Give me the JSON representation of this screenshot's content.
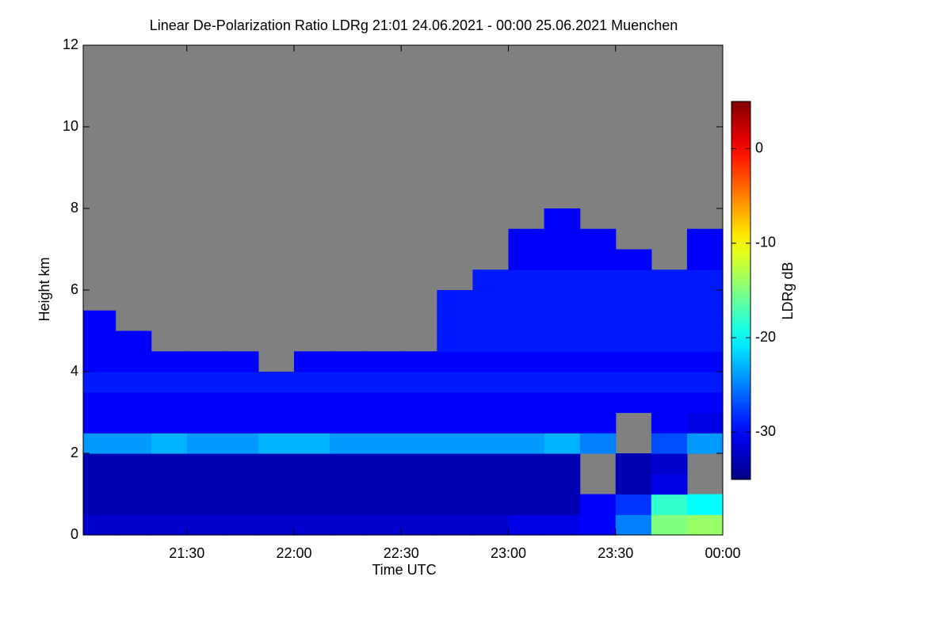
{
  "chart_data": {
    "type": "heatmap",
    "title": "Linear De-Polarization Ratio LDRg   21:01 24.06.2021 - 00:00 25.06.2021 Muenchen",
    "x_label": "Time UTC",
    "y_label": "Height km",
    "colorbar_label": "LDRg dB",
    "xlim": [
      21.0167,
      24.0
    ],
    "xticks": [
      {
        "value": 21.5,
        "label": "21:30"
      },
      {
        "value": 22.0,
        "label": "22:00"
      },
      {
        "value": 22.5,
        "label": "22:30"
      },
      {
        "value": 23.0,
        "label": "23:00"
      },
      {
        "value": 23.5,
        "label": "23:30"
      },
      {
        "value": 24.0,
        "label": "00:00"
      }
    ],
    "ylim": [
      0,
      12
    ],
    "yticks": [
      0,
      2,
      4,
      6,
      8,
      10,
      12
    ],
    "clim": [
      -35,
      5
    ],
    "cticks": [
      0,
      -10,
      -20,
      -30
    ],
    "colormap": "jet",
    "missing_color": "#808080",
    "xbins": [
      21.0167,
      21.1667,
      21.3333,
      21.5,
      21.6667,
      21.8333,
      22.0,
      22.1667,
      22.3333,
      22.5,
      22.6667,
      22.8333,
      23.0,
      23.1667,
      23.3333,
      23.5,
      23.6667,
      23.8333,
      24.0
    ],
    "ybins": [
      0,
      0.5,
      1,
      1.5,
      2,
      2.5,
      3,
      3.5,
      4,
      4.5,
      5,
      5.5,
      6,
      6.5,
      7,
      7.5,
      8,
      8.5,
      9,
      9.5,
      10,
      10.5,
      11,
      11.5,
      12
    ],
    "z": [
      [
        -32,
        -32,
        -32,
        -32,
        -32,
        -32,
        -32,
        -32,
        -32,
        -32,
        -32,
        -32,
        -31,
        -31,
        -30,
        -25,
        -15,
        -14
      ],
      [
        -33,
        -33,
        -33,
        -33,
        -33,
        -33,
        -33,
        -33,
        -33,
        -33,
        -33,
        -33,
        -33,
        -33,
        -30,
        -28,
        -18,
        -20
      ],
      [
        -33,
        -33,
        -33,
        -33,
        -33,
        -33,
        -33,
        -33,
        -33,
        -33,
        -33,
        -33,
        -33,
        -33,
        null,
        -33,
        -31,
        null
      ],
      [
        -33,
        -33,
        -33,
        -33,
        -33,
        -33,
        -33,
        -33,
        -33,
        -33,
        -33,
        -33,
        -33,
        -33,
        null,
        -33,
        -32,
        null
      ],
      [
        -24,
        -24,
        -23,
        -24,
        -24,
        -23,
        -23,
        -24,
        -24,
        -24,
        -24,
        -24,
        -24,
        -23,
        -25,
        null,
        -27,
        -24
      ],
      [
        -30,
        -30,
        -30,
        -30,
        -30,
        -30,
        -30,
        -30,
        -30,
        -30,
        -30,
        -30,
        -30,
        -30,
        -30,
        null,
        -30,
        -31
      ],
      [
        -30,
        -30,
        -30,
        -30,
        -30,
        -30,
        -30,
        -30,
        -30,
        -30,
        -30,
        -30,
        -30,
        -30,
        -30,
        -30,
        -30,
        -30
      ],
      [
        -29,
        -29,
        -29,
        -29,
        -29,
        -29,
        -29,
        -29,
        -29,
        -29,
        -29,
        -29,
        -29,
        -29,
        -29,
        -29,
        -29,
        -29
      ],
      [
        -30,
        -30,
        -30,
        -30,
        -30,
        null,
        -30,
        -30,
        -30,
        -30,
        -30,
        -30,
        -30,
        -30,
        -30,
        -30,
        -30,
        -30
      ],
      [
        -30,
        -30,
        null,
        null,
        null,
        null,
        null,
        null,
        null,
        null,
        -29,
        -29,
        -29,
        -29,
        -29,
        -29,
        -29,
        -29
      ],
      [
        -30,
        null,
        null,
        null,
        null,
        null,
        null,
        null,
        null,
        null,
        -29,
        -29,
        -29,
        -29,
        -29,
        -29,
        -29,
        -29
      ],
      [
        null,
        null,
        null,
        null,
        null,
        null,
        null,
        null,
        null,
        null,
        -29,
        -29,
        -29,
        -29,
        -29,
        -29,
        -29,
        -29
      ],
      [
        null,
        null,
        null,
        null,
        null,
        null,
        null,
        null,
        null,
        null,
        null,
        -29,
        -29,
        -29,
        -29,
        -29,
        -29,
        -29
      ],
      [
        null,
        null,
        null,
        null,
        null,
        null,
        null,
        null,
        null,
        null,
        null,
        null,
        -30,
        -30,
        -30,
        -30,
        null,
        -30
      ],
      [
        null,
        null,
        null,
        null,
        null,
        null,
        null,
        null,
        null,
        null,
        null,
        null,
        -30,
        -30,
        -30,
        null,
        null,
        -30
      ],
      [
        null,
        null,
        null,
        null,
        null,
        null,
        null,
        null,
        null,
        null,
        null,
        null,
        null,
        -30,
        null,
        null,
        null,
        null
      ],
      [
        null,
        null,
        null,
        null,
        null,
        null,
        null,
        null,
        null,
        null,
        null,
        null,
        null,
        null,
        null,
        null,
        null,
        null
      ],
      [
        null,
        null,
        null,
        null,
        null,
        null,
        null,
        null,
        null,
        null,
        null,
        null,
        null,
        null,
        null,
        null,
        null,
        null
      ],
      [
        null,
        null,
        null,
        null,
        null,
        null,
        null,
        null,
        null,
        null,
        null,
        null,
        null,
        null,
        null,
        null,
        null,
        null
      ],
      [
        null,
        null,
        null,
        null,
        null,
        null,
        null,
        null,
        null,
        null,
        null,
        null,
        null,
        null,
        null,
        null,
        null,
        null
      ],
      [
        null,
        null,
        null,
        null,
        null,
        null,
        null,
        null,
        null,
        null,
        null,
        null,
        null,
        null,
        null,
        null,
        null,
        null
      ],
      [
        null,
        null,
        null,
        null,
        null,
        null,
        null,
        null,
        null,
        null,
        null,
        null,
        null,
        null,
        null,
        null,
        null,
        null
      ],
      [
        null,
        null,
        null,
        null,
        null,
        null,
        null,
        null,
        null,
        null,
        null,
        null,
        null,
        null,
        null,
        null,
        null,
        null
      ],
      [
        null,
        null,
        null,
        null,
        null,
        null,
        null,
        null,
        null,
        null,
        null,
        null,
        null,
        null,
        null,
        null,
        null,
        null
      ]
    ]
  }
}
